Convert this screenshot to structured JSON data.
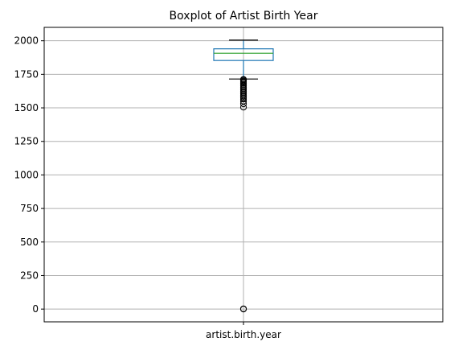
{
  "chart_data": {
    "type": "boxplot",
    "title": "Boxplot of Artist Birth Year",
    "xlabel": "",
    "ylabel": "",
    "categories": [
      "artist.birth.year"
    ],
    "boxes": [
      {
        "name": "artist.birth.year",
        "whisker_low": 1715,
        "q1": 1853,
        "median": 1907,
        "q3": 1940,
        "whisker_high": 2005,
        "outliers": [
          1505,
          1530,
          1550,
          1565,
          1575,
          1585,
          1595,
          1605,
          1615,
          1625,
          1635,
          1645,
          1655,
          1665,
          1675,
          1685,
          1692,
          1700,
          1707,
          1712,
          0,
          2
        ]
      }
    ],
    "ylim": [
      -95,
      2100
    ],
    "yticks": [
      0,
      250,
      500,
      750,
      1000,
      1250,
      1500,
      1750,
      2000
    ],
    "grid": true,
    "colors": {
      "box": "#1f77b4",
      "median": "#2ca02c",
      "whisker": "#1f77b4",
      "cap": "#000000",
      "flier": "#000000",
      "grid": "#b0b0b0",
      "axes": "#000000"
    }
  }
}
